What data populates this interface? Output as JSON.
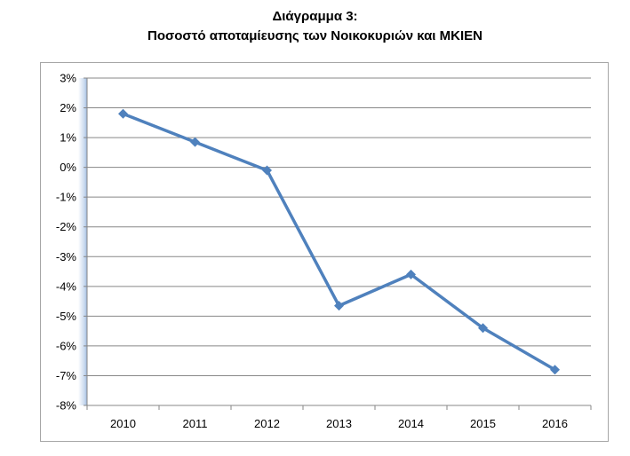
{
  "chart_data": {
    "type": "line",
    "title": "Διάγραμμα 3:",
    "subtitle": "Ποσοστό αποταμίευσης των Νοικοκυριών και ΜΚΙΕΝ",
    "categories": [
      "2010",
      "2011",
      "2012",
      "2013",
      "2014",
      "2015",
      "2016"
    ],
    "series": [
      {
        "values": [
          1.8,
          0.85,
          -0.1,
          -4.65,
          -3.6,
          -5.4,
          -6.8
        ]
      }
    ],
    "ylim": [
      -8,
      3
    ],
    "yticks": [
      3,
      2,
      1,
      0,
      -1,
      -2,
      -3,
      -4,
      -5,
      -6,
      -7,
      -8
    ],
    "ytick_labels": [
      "3%",
      "2%",
      "1%",
      "0%",
      "-1%",
      "-2%",
      "-3%",
      "-4%",
      "-5%",
      "-6%",
      "-7%",
      "-8%"
    ],
    "grid": true,
    "legend": "none",
    "colors": {
      "line": "#4f81bd",
      "grid": "#878787",
      "axis": "#878787",
      "text": "#000000"
    }
  }
}
